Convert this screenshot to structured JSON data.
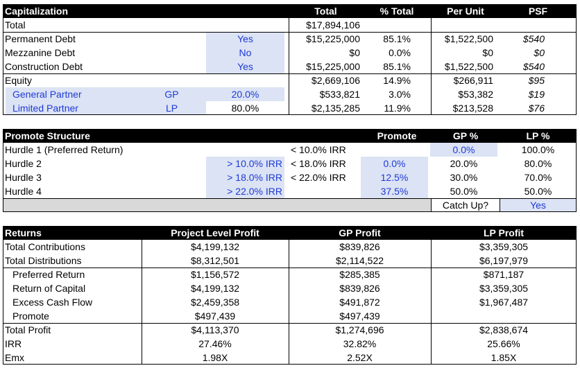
{
  "capitalization": {
    "headers": {
      "title": "Capitalization",
      "total": "Total",
      "pct_total": "% Total",
      "per_unit": "Per Unit",
      "psf": "PSF"
    },
    "total_row": {
      "label": "Total",
      "total": "$17,894,106"
    },
    "debt_rows": [
      {
        "label": "Permanent Debt",
        "flag": "Yes",
        "total": "$15,225,000",
        "pct": "85.1%",
        "per_unit": "$1,522,500",
        "psf": "$540"
      },
      {
        "label": "Mezzanine Debt",
        "flag": "No",
        "total": "$0",
        "pct": "0.0%",
        "per_unit": "$0",
        "psf": "$0"
      },
      {
        "label": "Construction Debt",
        "flag": "Yes",
        "total": "$15,225,000",
        "pct": "85.1%",
        "per_unit": "$1,522,500",
        "psf": "$540"
      }
    ],
    "equity_row": {
      "label": "Equity",
      "total": "$2,669,106",
      "pct": "14.9%",
      "per_unit": "$266,911",
      "psf": "$95"
    },
    "partners": [
      {
        "label": "General Partner",
        "code": "GP",
        "share": "20.0%",
        "total": "$533,821",
        "pct": "3.0%",
        "per_unit": "$53,382",
        "psf": "$19"
      },
      {
        "label": "Limited Partner",
        "code": "LP",
        "share": "80.0%",
        "total": "$2,135,285",
        "pct": "11.9%",
        "per_unit": "$213,528",
        "psf": "$76"
      }
    ]
  },
  "promote": {
    "headers": {
      "title": "Promote Structure",
      "promote": "Promote",
      "gp": "GP %",
      "lp": "LP %"
    },
    "rows": [
      {
        "label": "Hurdle 1 (Preferred Return)",
        "lower": "",
        "upper": "< 10.0% IRR",
        "promote": "",
        "gp": "0.0%",
        "lp": "100.0%"
      },
      {
        "label": "Hurdle 2",
        "lower": "> 10.0% IRR",
        "upper": "< 18.0% IRR",
        "promote": "0.0%",
        "gp": "20.0%",
        "lp": "80.0%"
      },
      {
        "label": "Hurdle 3",
        "lower": "> 18.0% IRR",
        "upper": "< 22.0% IRR",
        "promote": "12.5%",
        "gp": "30.0%",
        "lp": "70.0%"
      },
      {
        "label": "Hurdle 4",
        "lower": "> 22.0% IRR",
        "upper": "",
        "promote": "37.5%",
        "gp": "50.0%",
        "lp": "50.0%"
      }
    ],
    "catch_up": {
      "label": "Catch Up?",
      "value": "Yes"
    }
  },
  "returns": {
    "headers": {
      "title": "Returns",
      "project": "Project Level Profit",
      "gp": "GP Profit",
      "lp": "LP Profit"
    },
    "rows": [
      {
        "label": "Total Contributions",
        "project": "$4,199,132",
        "gp": "$839,826",
        "lp": "$3,359,305"
      },
      {
        "label": "Total Distributions",
        "project": "$8,312,501",
        "gp": "$2,114,522",
        "lp": "$6,197,979"
      },
      {
        "label": "Preferred Return",
        "project": "$1,156,572",
        "gp": "$285,385",
        "lp": "$871,187"
      },
      {
        "label": "Return of Capital",
        "project": "$4,199,132",
        "gp": "$839,826",
        "lp": "$3,359,305"
      },
      {
        "label": "Excess Cash Flow",
        "project": "$2,459,358",
        "gp": "$491,872",
        "lp": "$1,967,487"
      },
      {
        "label": "Promote",
        "project": "$497,439",
        "gp": "$497,439",
        "lp": ""
      },
      {
        "label": "Total Profit",
        "project": "$4,113,370",
        "gp": "$1,274,696",
        "lp": "$2,838,674"
      },
      {
        "label": "IRR",
        "project": "27.46%",
        "gp": "32.82%",
        "lp": "25.66%"
      },
      {
        "label": "Emx",
        "project": "1.98X",
        "gp": "2.52X",
        "lp": "1.85X"
      }
    ]
  },
  "colors": {
    "header_bg": "#000000",
    "input_bg": "#dbe3f4",
    "input_text": "#1f39d6",
    "gray_bg": "#d9d9d9"
  }
}
